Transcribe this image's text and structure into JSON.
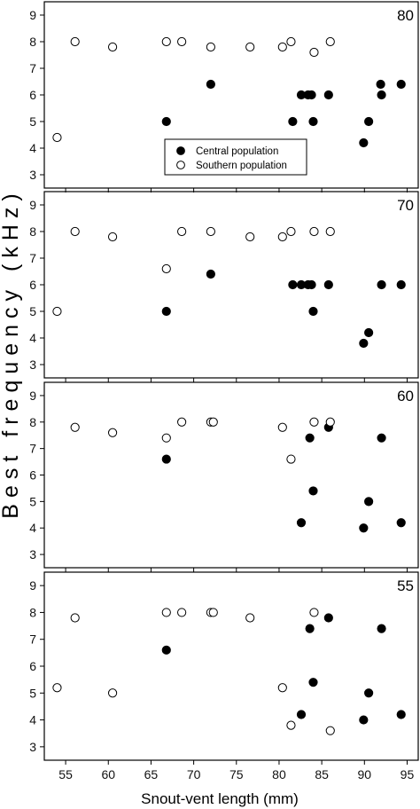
{
  "chart_data": {
    "type": "scatter",
    "ylabel": "Best frequency (kHz)",
    "xlabel": "Snout-vent length (mm)",
    "xlim": [
      52.5,
      96.3
    ],
    "ylim": [
      2.5,
      9.5
    ],
    "xticks": [
      55,
      60,
      65,
      70,
      75,
      80,
      85,
      90,
      95
    ],
    "yticks": [
      3,
      4,
      5,
      6,
      7,
      8,
      9
    ],
    "legend": {
      "placement": "center (panel 80)",
      "entries": [
        {
          "label": "Central population",
          "marker": "filled-circle"
        },
        {
          "label": "Southern population",
          "marker": "open-circle"
        }
      ]
    },
    "panels": [
      {
        "label": "80",
        "series": [
          {
            "name": "Central population",
            "points": [
              [
                66.8,
                5.0
              ],
              [
                72.0,
                6.4
              ],
              [
                81.6,
                5.0
              ],
              [
                82.6,
                6.0
              ],
              [
                83.4,
                6.0
              ],
              [
                83.8,
                6.0
              ],
              [
                84.0,
                5.0
              ],
              [
                85.8,
                6.0
              ],
              [
                89.9,
                4.2
              ],
              [
                90.5,
                5.0
              ],
              [
                91.9,
                6.4
              ],
              [
                92.0,
                6.0
              ],
              [
                94.3,
                6.4
              ]
            ]
          },
          {
            "name": "Southern population",
            "points": [
              [
                54.0,
                4.4
              ],
              [
                56.1,
                8.0
              ],
              [
                60.5,
                7.8
              ],
              [
                66.8,
                8.0
              ],
              [
                68.6,
                8.0
              ],
              [
                72.0,
                7.8
              ],
              [
                76.6,
                7.8
              ],
              [
                80.4,
                7.8
              ],
              [
                81.4,
                8.0
              ],
              [
                84.1,
                7.6
              ],
              [
                86.0,
                8.0
              ]
            ]
          }
        ]
      },
      {
        "label": "70",
        "series": [
          {
            "name": "Central population",
            "points": [
              [
                66.8,
                5.0
              ],
              [
                72.0,
                6.4
              ],
              [
                81.6,
                6.0
              ],
              [
                82.6,
                6.0
              ],
              [
                83.4,
                6.0
              ],
              [
                83.8,
                6.0
              ],
              [
                84.0,
                5.0
              ],
              [
                85.8,
                6.0
              ],
              [
                89.9,
                3.8
              ],
              [
                90.5,
                4.2
              ],
              [
                92.0,
                6.0
              ],
              [
                94.3,
                6.0
              ]
            ]
          },
          {
            "name": "Southern population",
            "points": [
              [
                54.0,
                5.0
              ],
              [
                56.1,
                8.0
              ],
              [
                60.5,
                7.8
              ],
              [
                66.8,
                6.6
              ],
              [
                68.6,
                8.0
              ],
              [
                72.0,
                8.0
              ],
              [
                76.6,
                7.8
              ],
              [
                80.4,
                7.8
              ],
              [
                81.4,
                8.0
              ],
              [
                84.1,
                8.0
              ],
              [
                86.0,
                8.0
              ]
            ]
          }
        ]
      },
      {
        "label": "60",
        "series": [
          {
            "name": "Central population",
            "points": [
              [
                66.8,
                6.6
              ],
              [
                82.6,
                4.2
              ],
              [
                83.6,
                7.4
              ],
              [
                84.0,
                5.4
              ],
              [
                85.8,
                7.8
              ],
              [
                89.9,
                4.0
              ],
              [
                90.5,
                5.0
              ],
              [
                92.0,
                7.4
              ],
              [
                94.3,
                4.2
              ]
            ]
          },
          {
            "name": "Southern population",
            "points": [
              [
                56.1,
                7.8
              ],
              [
                60.5,
                7.6
              ],
              [
                66.8,
                7.4
              ],
              [
                68.6,
                8.0
              ],
              [
                72.0,
                8.0
              ],
              [
                72.3,
                8.0
              ],
              [
                80.4,
                7.8
              ],
              [
                81.4,
                6.6
              ],
              [
                84.1,
                8.0
              ],
              [
                86.0,
                8.0
              ]
            ]
          }
        ]
      },
      {
        "label": "55",
        "series": [
          {
            "name": "Central population",
            "points": [
              [
                66.8,
                6.6
              ],
              [
                82.6,
                4.2
              ],
              [
                83.6,
                7.4
              ],
              [
                84.0,
                5.4
              ],
              [
                85.8,
                7.8
              ],
              [
                89.9,
                4.0
              ],
              [
                90.5,
                5.0
              ],
              [
                92.0,
                7.4
              ],
              [
                94.3,
                4.2
              ]
            ]
          },
          {
            "name": "Southern population",
            "points": [
              [
                54.0,
                5.2
              ],
              [
                56.1,
                7.8
              ],
              [
                60.5,
                5.0
              ],
              [
                66.8,
                8.0
              ],
              [
                68.6,
                8.0
              ],
              [
                72.0,
                8.0
              ],
              [
                72.3,
                8.0
              ],
              [
                76.6,
                7.8
              ],
              [
                80.4,
                5.2
              ],
              [
                81.4,
                3.8
              ],
              [
                84.1,
                8.0
              ],
              [
                86.0,
                3.6
              ]
            ]
          }
        ]
      }
    ]
  }
}
